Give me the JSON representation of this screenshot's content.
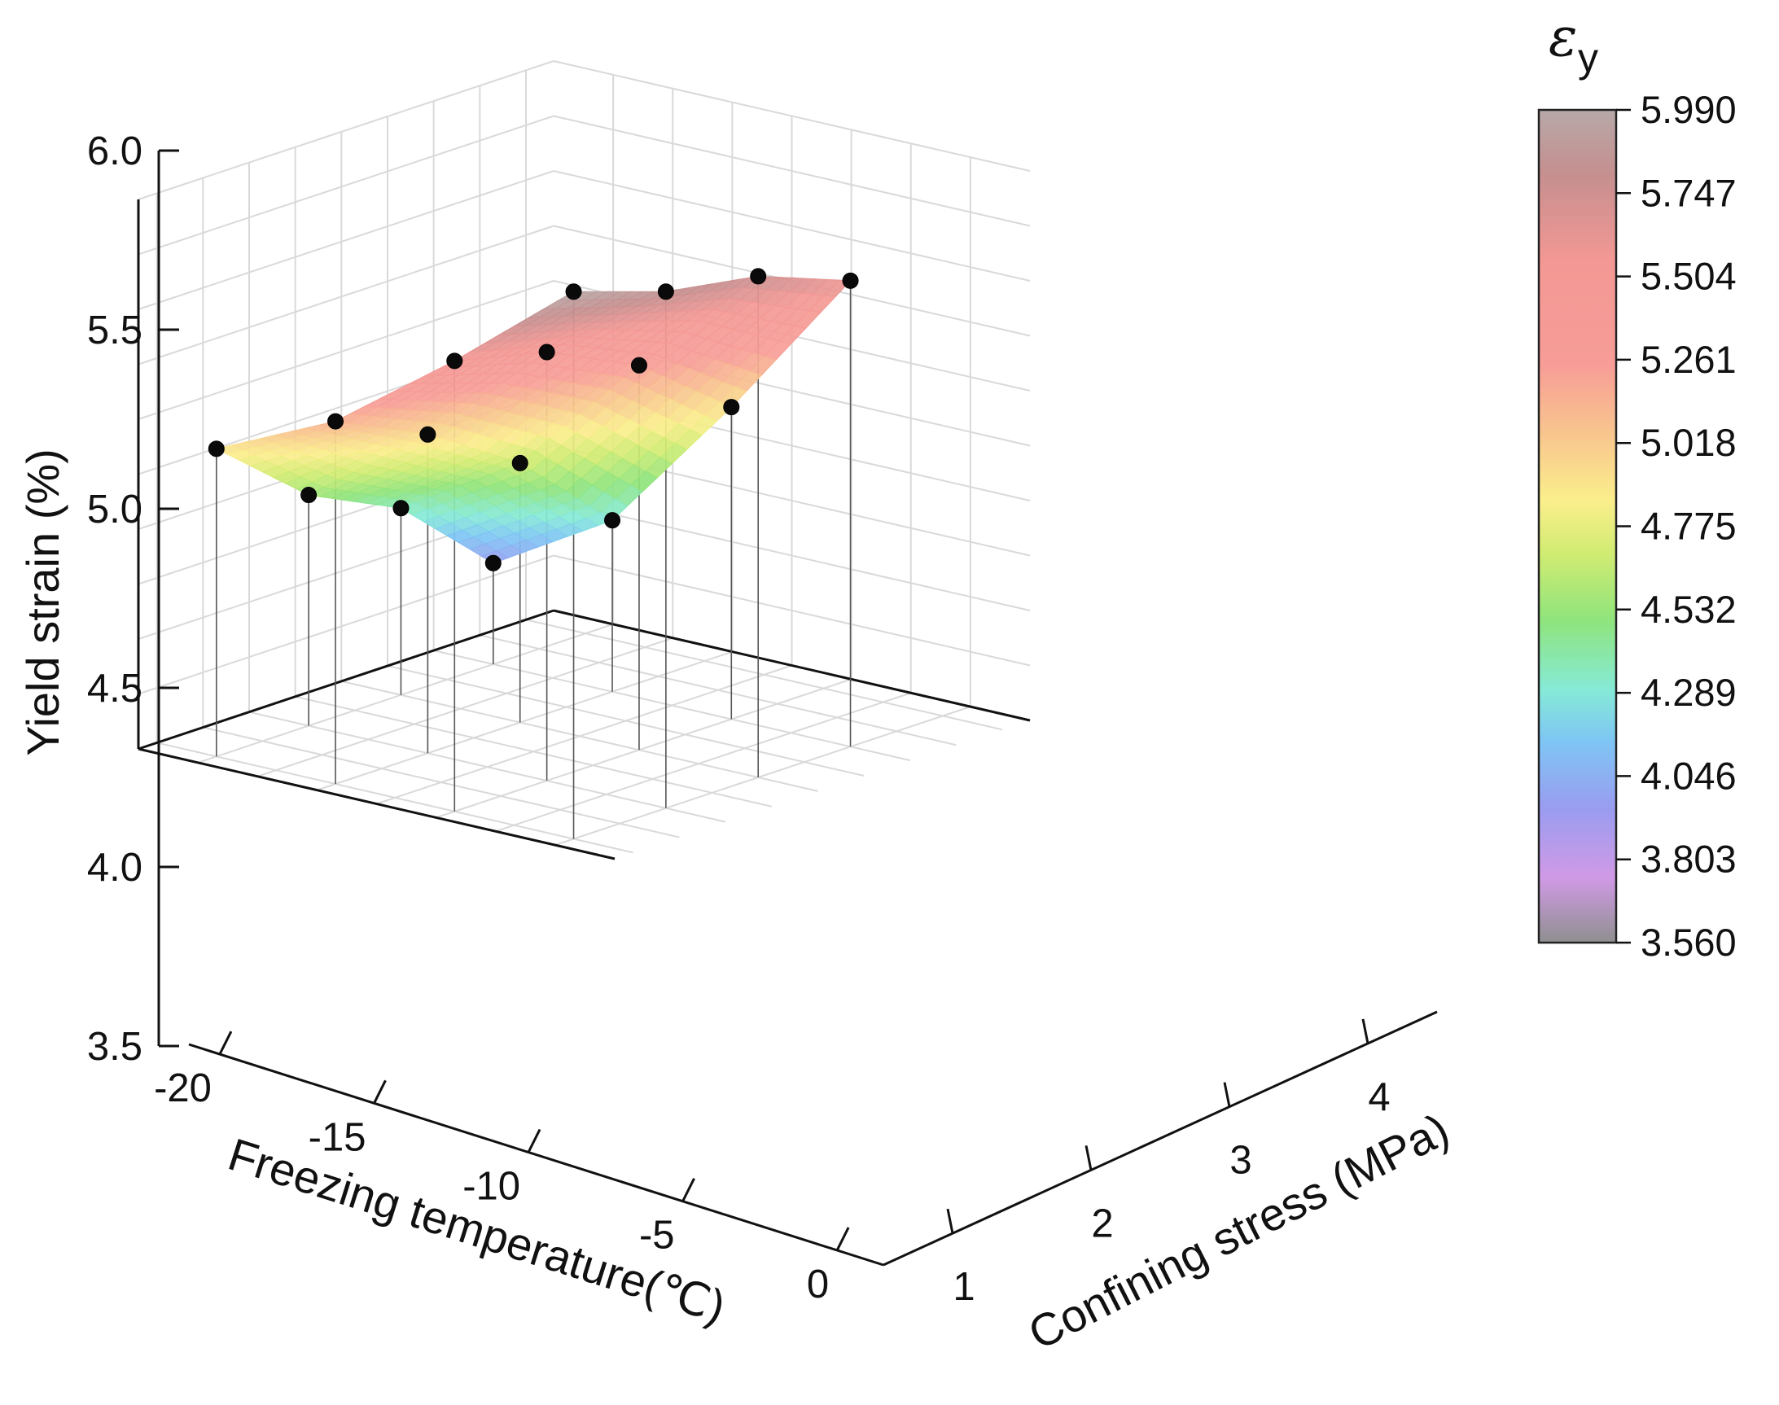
{
  "chart_data": {
    "type": "surface3d",
    "title": "",
    "xlabel": "Freezing temperature(℃)",
    "ylabel": "Confining stress (MPa)",
    "zlabel": "Yield strain (%)",
    "x_ticks": [
      "-20",
      "-15",
      "-10",
      "-5",
      "0"
    ],
    "x_tick_values": [
      -20,
      -15,
      -10,
      -5,
      0
    ],
    "y_ticks": [
      "1",
      "2",
      "3",
      "4"
    ],
    "y_tick_values": [
      1,
      2,
      3,
      4
    ],
    "z_ticks": [
      "3.5",
      "4.0",
      "4.5",
      "5.0",
      "5.5",
      "6.0"
    ],
    "z_tick_values": [
      3.5,
      4.0,
      4.5,
      5.0,
      5.5,
      6.0
    ],
    "xlim": [
      -21,
      1.5
    ],
    "ylim": [
      0.5,
      4.5
    ],
    "zlim": [
      3.5,
      6.0
    ],
    "temperatures": [
      -20,
      -15,
      -10,
      -5
    ],
    "confining_stress": [
      1,
      2,
      3,
      4
    ],
    "yield_strain_grid": [
      [
        4.9,
        5.15,
        5.55,
        5.99
      ],
      [
        4.55,
        4.95,
        5.45,
        5.85
      ],
      [
        4.35,
        4.68,
        5.25,
        5.78
      ],
      [
        3.96,
        4.28,
        4.92,
        5.62
      ]
    ],
    "colorbar": {
      "title": "ε",
      "title_sub": "y",
      "ticks": [
        "5.990",
        "5.747",
        "5.504",
        "5.261",
        "5.018",
        "4.775",
        "4.532",
        "4.289",
        "4.046",
        "3.803",
        "3.560"
      ],
      "tick_values": [
        5.99,
        5.747,
        5.504,
        5.261,
        5.018,
        4.775,
        4.532,
        4.289,
        4.046,
        3.803,
        3.56
      ],
      "stops": [
        {
          "value": 3.56,
          "color": "#8f8f8f"
        },
        {
          "value": 3.75,
          "color": "#d09ae6"
        },
        {
          "value": 3.95,
          "color": "#9a9cf0"
        },
        {
          "value": 4.15,
          "color": "#7ec6f4"
        },
        {
          "value": 4.3,
          "color": "#86ead6"
        },
        {
          "value": 4.5,
          "color": "#8fe47c"
        },
        {
          "value": 4.7,
          "color": "#d2ec72"
        },
        {
          "value": 4.85,
          "color": "#fbee8c"
        },
        {
          "value": 5.05,
          "color": "#f8c48e"
        },
        {
          "value": 5.25,
          "color": "#f79c97"
        },
        {
          "value": 5.55,
          "color": "#f39894"
        },
        {
          "value": 5.8,
          "color": "#c68f8f"
        },
        {
          "value": 5.99,
          "color": "#b7a8a8"
        }
      ]
    }
  }
}
